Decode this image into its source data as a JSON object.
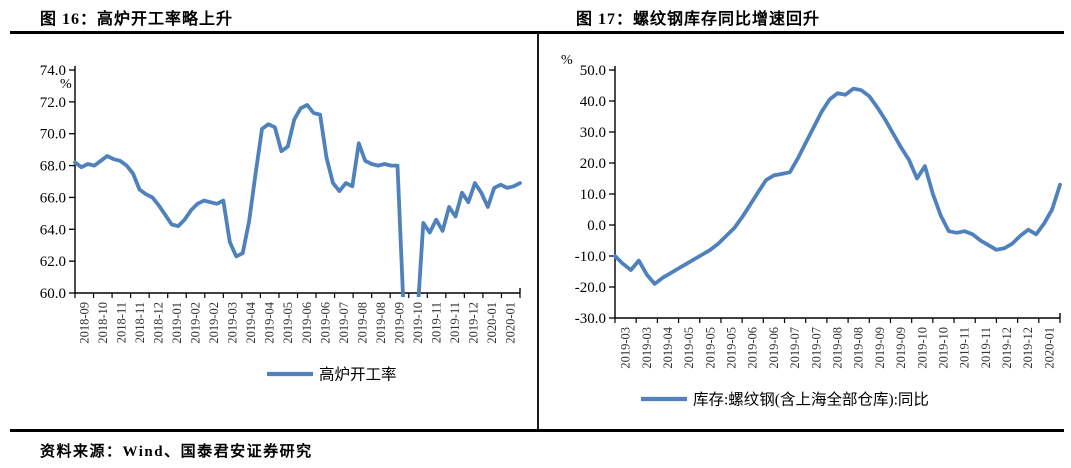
{
  "page": {
    "source_note": "资料来源：Wind、国泰君安证券研究"
  },
  "colors": {
    "series_line": "#4f81bd",
    "axis": "#000000",
    "tick_label_y": "#000000",
    "tick_label_x": "#333333",
    "rule": "#000000"
  },
  "chart_data": [
    {
      "type": "line",
      "title": "图 16：高炉开工率略上升",
      "unit": "%",
      "legend": "高炉开工率",
      "legend_position": "bottom",
      "grid": false,
      "ylim": [
        60.0,
        74.0
      ],
      "ytick_step": 2.0,
      "x_labels": [
        "2018-09",
        "2018-10",
        "2018-11",
        "2018-11",
        "2018-12",
        "2019-01",
        "2019-02",
        "2019-02",
        "2019-03",
        "2019-04",
        "2019-04",
        "2019-05",
        "2019-06",
        "2019-06",
        "2019-07",
        "2019-08",
        "2019-08",
        "2019-09",
        "2019-10",
        "2019-11",
        "2019-11",
        "2019-12",
        "2020-01",
        "2020-01"
      ],
      "values": [
        68.2,
        67.9,
        68.1,
        68.0,
        68.3,
        68.6,
        68.4,
        68.3,
        68.0,
        67.5,
        66.5,
        66.2,
        66.0,
        65.5,
        64.9,
        64.3,
        64.2,
        64.6,
        65.2,
        65.6,
        65.8,
        65.7,
        65.6,
        65.8,
        63.2,
        62.3,
        62.5,
        64.5,
        67.5,
        70.3,
        70.6,
        70.4,
        68.9,
        69.2,
        70.9,
        71.6,
        71.8,
        71.3,
        71.2,
        68.5,
        66.9,
        66.4,
        66.9,
        66.7,
        69.4,
        68.3,
        68.1,
        68.0,
        68.1,
        68.0,
        68.0,
        58.5,
        57.0,
        58.0,
        64.4,
        63.8,
        64.6,
        63.9,
        65.4,
        64.8,
        66.3,
        65.7,
        66.9,
        66.3,
        65.4,
        66.6,
        66.8,
        66.6,
        66.7,
        66.9
      ]
    },
    {
      "type": "line",
      "title": "图 17：螺纹钢库存同比增速回升",
      "unit": "%",
      "legend": "库存:螺纹钢(含上海全部仓库):同比",
      "legend_position": "bottom",
      "grid": false,
      "ylim": [
        -30.0,
        50.0
      ],
      "ytick_step": 10.0,
      "x_labels": [
        "2019-03",
        "2019-03",
        "2019-04",
        "2019-05",
        "2019-05",
        "2019-05",
        "2019-06",
        "2019-06",
        "2019-07",
        "2019-07",
        "2019-08",
        "2019-08",
        "2019-09",
        "2019-09",
        "2019-10",
        "2019-10",
        "2019-11",
        "2019-11",
        "2019-12",
        "2019-12",
        "2020-01"
      ],
      "values": [
        -10.0,
        -12.5,
        -14.5,
        -11.5,
        -16.0,
        -19.0,
        -17.0,
        -15.5,
        -14.0,
        -12.5,
        -11.0,
        -9.5,
        -8.0,
        -6.0,
        -3.5,
        -1.0,
        2.5,
        6.5,
        10.5,
        14.5,
        16.0,
        16.5,
        17.0,
        21.5,
        26.5,
        31.5,
        36.5,
        40.5,
        42.5,
        42.0,
        44.0,
        43.5,
        41.5,
        38.0,
        34.0,
        29.5,
        25.0,
        21.0,
        15.0,
        19.0,
        10.0,
        3.0,
        -2.0,
        -2.5,
        -2.0,
        -3.0,
        -5.0,
        -6.5,
        -8.0,
        -7.5,
        -6.0,
        -3.5,
        -1.5,
        -3.0,
        0.5,
        5.0,
        13.0
      ]
    }
  ]
}
